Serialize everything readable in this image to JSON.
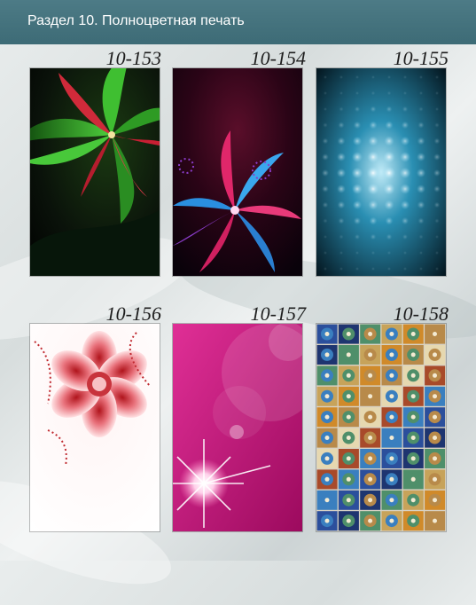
{
  "header": {
    "title": "Раздел 10. Полноцветная печать"
  },
  "panels": [
    {
      "code": "10-153",
      "design": "green-red-fractal-flower"
    },
    {
      "code": "10-154",
      "design": "blue-pink-fractal-burst"
    },
    {
      "code": "10-155",
      "design": "blue-light-grid"
    },
    {
      "code": "10-156",
      "design": "red-fractal-flower-on-white"
    },
    {
      "code": "10-157",
      "design": "magenta-bokeh-sparkle"
    },
    {
      "code": "10-158",
      "design": "patterned-tiles-mosaic"
    }
  ]
}
